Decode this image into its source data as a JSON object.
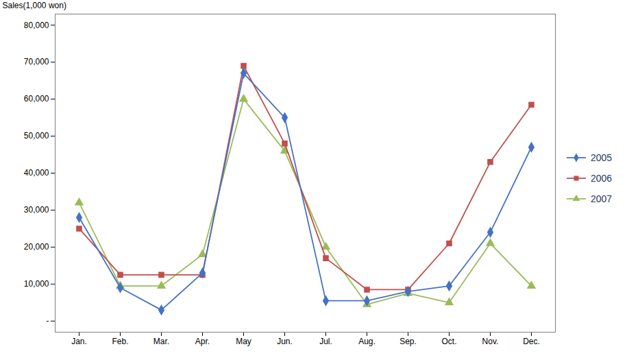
{
  "chart_data": {
    "type": "line",
    "categories": [
      "Jan.",
      "Feb.",
      "Mar.",
      "Apr.",
      "May",
      "Jun.",
      "Jul.",
      "Aug.",
      "Sep.",
      "Oct.",
      "Nov.",
      "Dec."
    ],
    "series": [
      {
        "name": "2005",
        "color": "#4472C4",
        "marker": "diamond",
        "values": [
          28000,
          9000,
          3000,
          13000,
          67000,
          55000,
          5500,
          5500,
          8000,
          9500,
          24000,
          47000
        ]
      },
      {
        "name": "2006",
        "color": "#C0504D",
        "marker": "square",
        "values": [
          25000,
          12500,
          12500,
          12500,
          69000,
          48000,
          17000,
          8500,
          8500,
          21000,
          43000,
          58500
        ]
      },
      {
        "name": "2007",
        "color": "#9BBB59",
        "marker": "triangle",
        "values": [
          32000,
          9500,
          9500,
          18000,
          60000,
          46000,
          20000,
          4500,
          7500,
          5000,
          21000,
          9500
        ]
      }
    ],
    "ylabel": "Sales(1,000 won)",
    "ylim": [
      -3000,
      83000
    ],
    "yticks": [
      {
        "value": 0,
        "label": "-"
      },
      {
        "value": 10000,
        "label": "10,000"
      },
      {
        "value": 20000,
        "label": "20,000"
      },
      {
        "value": 30000,
        "label": "30,000"
      },
      {
        "value": 40000,
        "label": "40,000"
      },
      {
        "value": 50000,
        "label": "50,000"
      },
      {
        "value": 60000,
        "label": "60,000"
      },
      {
        "value": 70000,
        "label": "70,000"
      },
      {
        "value": 80000,
        "label": "80,000"
      }
    ],
    "grid": false,
    "legend": "right"
  }
}
